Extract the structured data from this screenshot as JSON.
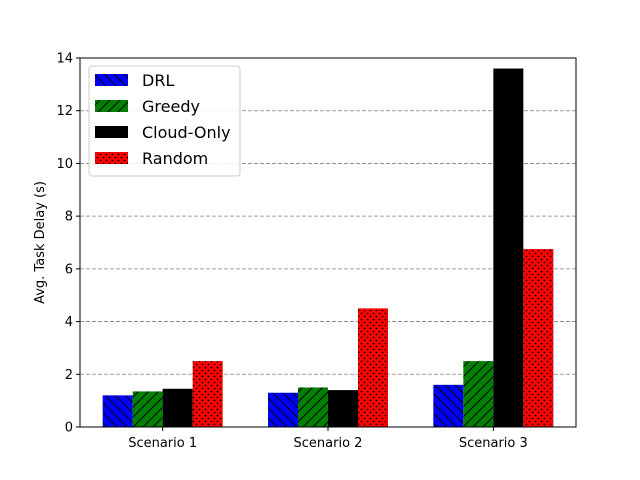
{
  "chart_data": {
    "type": "bar",
    "title": "",
    "xlabel": "",
    "ylabel": "Avg. Task Delay (s)",
    "categories": [
      "Scenario 1",
      "Scenario 2",
      "Scenario 3"
    ],
    "ylim": [
      0,
      14
    ],
    "yticks": [
      0,
      2,
      4,
      6,
      8,
      10,
      12,
      14
    ],
    "grid": "y-dashed",
    "legend_position": "top-left",
    "series": [
      {
        "name": "DRL",
        "color": "#0000ff",
        "hatch": "diagonal-back",
        "values": [
          1.2,
          1.3,
          1.6
        ]
      },
      {
        "name": "Greedy",
        "color": "#008000",
        "hatch": "diagonal-forward",
        "values": [
          1.35,
          1.5,
          2.5
        ]
      },
      {
        "name": "Cloud-Only",
        "color": "#000000",
        "hatch": "none",
        "values": [
          1.45,
          1.4,
          13.6
        ]
      },
      {
        "name": "Random",
        "color": "#ff0000",
        "hatch": "dots",
        "values": [
          2.5,
          4.5,
          6.75
        ]
      }
    ]
  }
}
